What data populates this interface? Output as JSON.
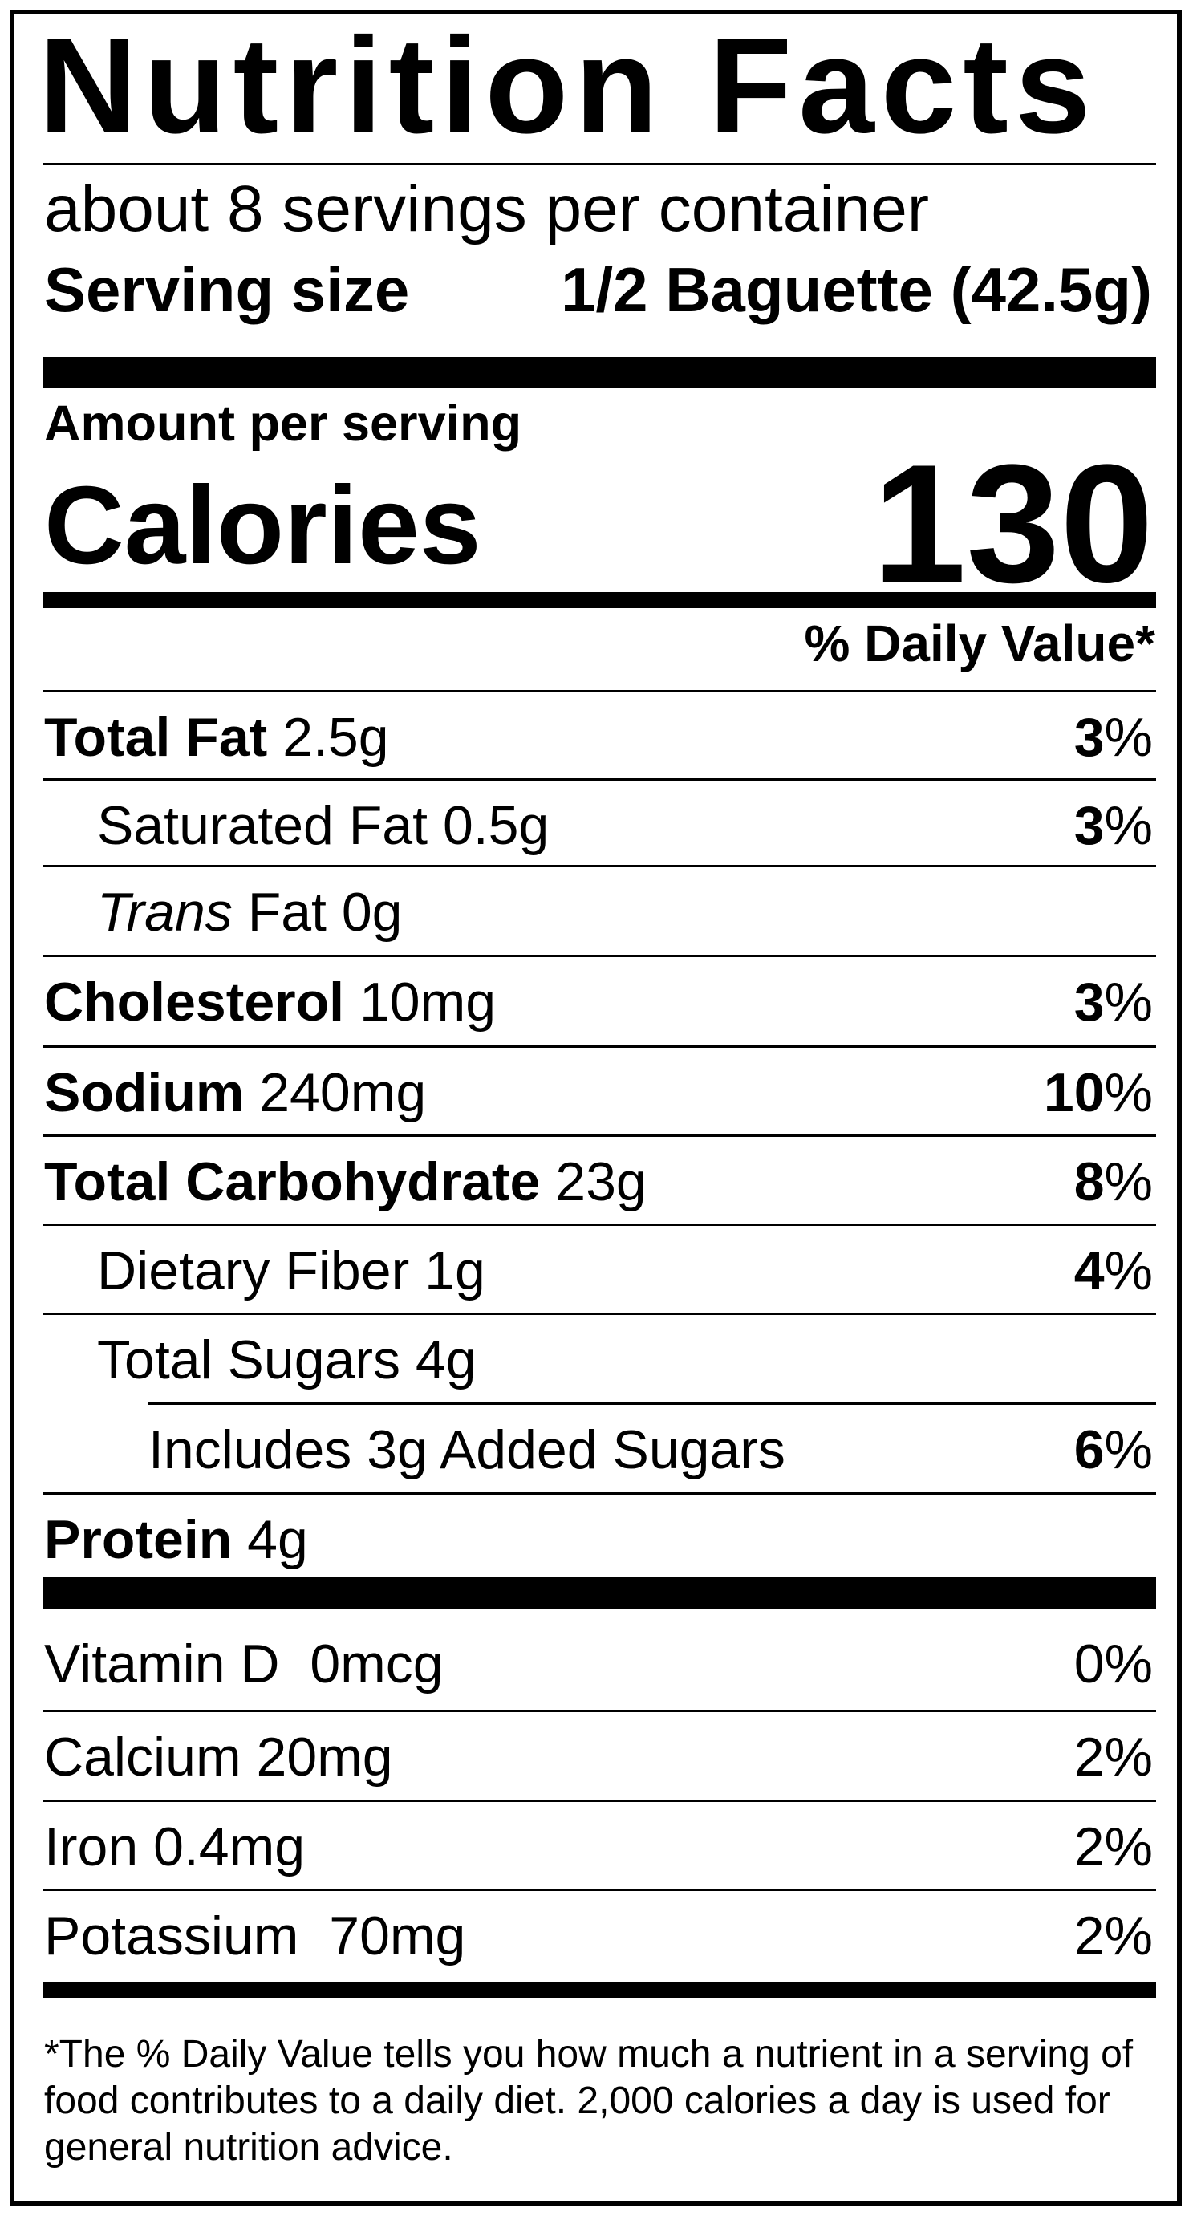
{
  "title": "Nutrition Facts",
  "servings_per_container": "about 8 servings per container",
  "serving_size": {
    "label": "Serving size",
    "value": "1/2 Baguette (42.5g)"
  },
  "amount_per_serving": "Amount per serving",
  "calories": {
    "label": "Calories",
    "value": "130"
  },
  "daily_value_header": "% Daily Value*",
  "nutrients": [
    {
      "name": "Total Fat",
      "amount": "2.5g",
      "dv_bold": "3",
      "dv_sign": "%"
    },
    {
      "name_plain": "Saturated Fat",
      "amount": "0.5g",
      "dv_bold": "3",
      "dv_sign": "%"
    },
    {
      "name_italic": "Trans",
      "name_plain": "Fat",
      "amount": "0g"
    },
    {
      "name": "Cholesterol",
      "amount": "10mg",
      "dv_bold": "3",
      "dv_sign": "%"
    },
    {
      "name": "Sodium",
      "amount": "240mg",
      "dv_bold": "10",
      "dv_sign": "%"
    },
    {
      "name": "Total Carbohydrate",
      "amount": "23g",
      "dv_bold": "8",
      "dv_sign": "%"
    },
    {
      "name_plain": "Dietary Fiber",
      "amount": "1g",
      "dv_bold": "4",
      "dv_sign": "%"
    },
    {
      "name_plain": "Total Sugars",
      "amount": "4g"
    },
    {
      "text": "Includes 3g Added Sugars",
      "dv_bold": "6",
      "dv_sign": "%"
    },
    {
      "name": "Protein",
      "amount": "4g"
    }
  ],
  "vitamins": [
    {
      "name": "Vitamin D",
      "amount": "0mcg",
      "dv": "0%"
    },
    {
      "name": "Calcium",
      "amount": "20mg",
      "dv": "2%"
    },
    {
      "name": "Iron",
      "amount": "0.4mg",
      "dv": "2%"
    },
    {
      "name": "Potassium",
      "amount": "70mg",
      "dv": "2%"
    }
  ],
  "footnote": "*The % Daily Value tells you how much a nutrient in a serving of food contributes to a daily diet. 2,000 calories a day is used for general nutrition advice."
}
